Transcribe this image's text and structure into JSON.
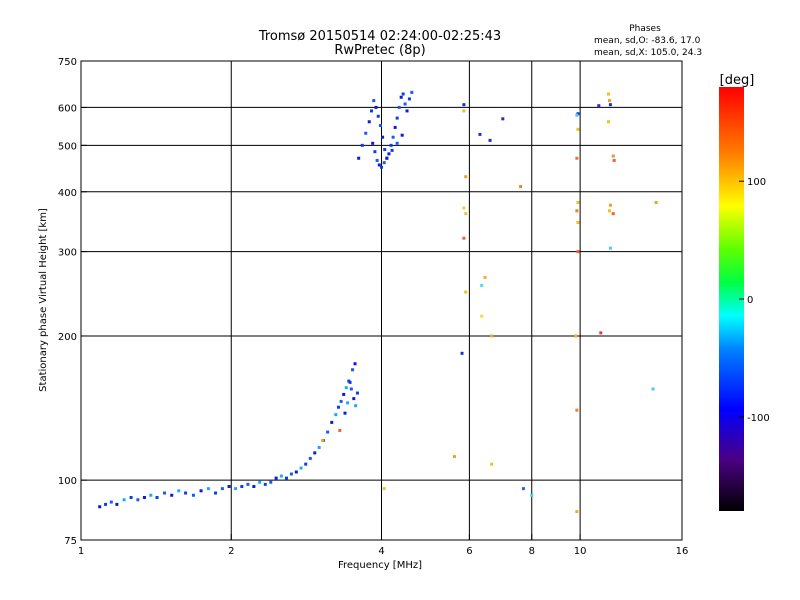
{
  "chart_data": {
    "type": "scatter",
    "title": "Tromsø 20150514 02:24:00-02:25:43",
    "subtitle": "RwPretec (8p)",
    "xlabel": "Frequency [MHz]",
    "ylabel": "Stationary phase Virtual Height [km]",
    "x_scale": "log",
    "y_scale": "log",
    "xlim": [
      1,
      16
    ],
    "ylim": [
      75,
      750
    ],
    "x_ticks": [
      1,
      2,
      4,
      6,
      8,
      10,
      16
    ],
    "y_ticks": [
      75,
      100,
      200,
      300,
      400,
      500,
      600,
      750
    ],
    "grid": true,
    "stats": {
      "heading": "Phases",
      "line1": "mean, sd,O: -83.6, 17.0",
      "line2": "mean, sd,X: 105.0, 24.3"
    },
    "colorbar": {
      "label": "[deg]",
      "range": [
        -180,
        180
      ],
      "ticks": [
        -100,
        0,
        100
      ],
      "colormap": "rainbow"
    },
    "series": [
      {
        "name": "O",
        "x": [
          1.09,
          1.12,
          1.15,
          1.18,
          1.22,
          1.26,
          1.3,
          1.34,
          1.38,
          1.42,
          1.47,
          1.52,
          1.57,
          1.62,
          1.68,
          1.74,
          1.8,
          1.86,
          1.92,
          1.98,
          2.04,
          2.1,
          2.16,
          2.22,
          2.28,
          2.34,
          2.4,
          2.46,
          2.52,
          2.58,
          2.64,
          2.7,
          2.76,
          2.82,
          2.88,
          2.94,
          3.0,
          3.06,
          3.12,
          3.18,
          3.24,
          3.28,
          3.32,
          3.36,
          3.4,
          3.44,
          3.48,
          3.52,
          3.55,
          3.58,
          3.38,
          3.42,
          3.46,
          3.5,
          3.54,
          3.6,
          3.66,
          3.72,
          3.78,
          3.82,
          3.86,
          3.9,
          3.94,
          3.98,
          4.02,
          4.06,
          4.1,
          4.14,
          4.18,
          4.22,
          4.26,
          4.3,
          4.34,
          4.38,
          4.42,
          4.46,
          4.5,
          4.55,
          4.6,
          3.84,
          3.88,
          3.92,
          3.96,
          4.0,
          4.05,
          4.1,
          4.2,
          4.3,
          4.4,
          5.85,
          6.3,
          6.6,
          7.0,
          7.7,
          9.9,
          10.9,
          11.5,
          5.8
        ],
        "y": [
          88,
          89,
          90,
          89,
          91,
          92,
          91,
          92,
          93,
          92,
          94,
          93,
          95,
          94,
          93,
          95,
          96,
          94,
          96,
          97,
          96,
          97,
          98,
          97,
          99,
          98,
          99,
          101,
          102,
          101,
          103,
          104,
          106,
          108,
          111,
          114,
          117,
          121,
          126,
          132,
          137,
          142,
          146,
          151,
          156,
          161,
          155,
          148,
          143,
          152,
          138,
          145,
          160,
          170,
          175,
          470,
          500,
          530,
          560,
          590,
          620,
          600,
          575,
          550,
          520,
          490,
          470,
          480,
          500,
          520,
          545,
          570,
          600,
          630,
          640,
          610,
          590,
          625,
          645,
          505,
          485,
          465,
          455,
          450,
          460,
          470,
          488,
          505,
          525,
          608,
          527,
          512,
          568,
          96,
          582,
          605,
          608,
          184
        ],
        "colors": [
          "#0b1bd8",
          "#0b3fe3",
          "#1a5af0",
          "#0b1bd8",
          "#22a7f5",
          "#0b3fe3",
          "#1a5af0",
          "#0b1bd8",
          "#22a7f5",
          "#0b3fe3",
          "#1a5af0",
          "#0b1bd8",
          "#22a7f5",
          "#0b3fe3",
          "#1a5af0",
          "#0b1bd8",
          "#22a7f5",
          "#0b3fe3",
          "#1a5af0",
          "#0b1bd8",
          "#22a7f5",
          "#0b3fe3",
          "#1a5af0",
          "#0b1bd8",
          "#22a7f5",
          "#0b3fe3",
          "#1a5af0",
          "#0b1bd8",
          "#22a7f5",
          "#0b3fe3",
          "#1a5af0",
          "#0b1bd8",
          "#22a7f5",
          "#0b3fe3",
          "#1a5af0",
          "#0b1bd8",
          "#22a7f5",
          "#0b3fe3",
          "#1a5af0",
          "#0b1bd8",
          "#22a7f5",
          "#0b3fe3",
          "#1a5af0",
          "#0b1bd8",
          "#22a7f5",
          "#0b3fe3",
          "#1a5af0",
          "#0b1bd8",
          "#22a7f5",
          "#0b3fe3",
          "#0b1bd8",
          "#22a7f5",
          "#0b3fe3",
          "#1a5af0",
          "#0b1bd8",
          "#0b1bd8",
          "#0b3fe3",
          "#1a5af0",
          "#0b1bd8",
          "#0b3fe3",
          "#1a5af0",
          "#0b1bd8",
          "#0b3fe3",
          "#1a5af0",
          "#0b1bd8",
          "#0b3fe3",
          "#1a5af0",
          "#0b1bd8",
          "#0b3fe3",
          "#1a5af0",
          "#0b1bd8",
          "#0b3fe3",
          "#1a5af0",
          "#0b1bd8",
          "#0b3fe3",
          "#1a5af0",
          "#0b1bd8",
          "#0b3fe3",
          "#1a5af0",
          "#0b1bd8",
          "#0b3fe3",
          "#1a5af0",
          "#0b1bd8",
          "#0b3fe3",
          "#1a5af0",
          "#0b1bd8",
          "#0b3fe3",
          "#1a5af0",
          "#0b1bd8",
          "#1b2fd6",
          "#1b2fd6",
          "#1b2fd6",
          "#1b2fd6",
          "#2266e0",
          "#1b2fd6",
          "#1b2fd6",
          "#1b2fd6",
          "#1b2fd6"
        ]
      },
      {
        "name": "X",
        "x": [
          5.85,
          5.9,
          5.85,
          5.9,
          5.85,
          5.9,
          6.35,
          6.45,
          6.35,
          6.65,
          6.65,
          7.6,
          8.0,
          9.85,
          9.9,
          9.85,
          9.9,
          9.85,
          9.9,
          9.9,
          9.8,
          9.85,
          9.85,
          11.4,
          11.45,
          11.4,
          11.5,
          11.45,
          11.65,
          11.7,
          11.65,
          11.5,
          14.2,
          14.0,
          11.0,
          3.05,
          3.3,
          4.05,
          5.6
        ],
        "y": [
          590,
          430,
          370,
          360,
          320,
          247,
          255,
          265,
          220,
          200,
          108,
          410,
          93,
          578,
          540,
          470,
          380,
          365,
          345,
          300,
          200,
          140,
          86,
          640,
          620,
          560,
          375,
          365,
          360,
          465,
          475,
          305,
          380,
          155,
          203,
          121,
          127,
          96,
          112
        ],
        "colors": [
          "#f0c020",
          "#f0a020",
          "#f0d030",
          "#e8c040",
          "#f06040",
          "#f0c020",
          "#40e0e8",
          "#f0b020",
          "#e8e040",
          "#f0b020",
          "#f0c020",
          "#f08020",
          "#40d0e8",
          "#40d0e8",
          "#f0c020",
          "#f07030",
          "#f0c020",
          "#f08020",
          "#f0c020",
          "#f06030",
          "#f0b020",
          "#f08030",
          "#f0b020",
          "#f0c020",
          "#f0a020",
          "#f0c020",
          "#f0a020",
          "#f0c020",
          "#f06030",
          "#f06030",
          "#f09030",
          "#40d0e8",
          "#f0a020",
          "#40d0e8",
          "#e04030",
          "#f0a020",
          "#f06030",
          "#f0c020",
          "#f0a020"
        ]
      }
    ]
  }
}
